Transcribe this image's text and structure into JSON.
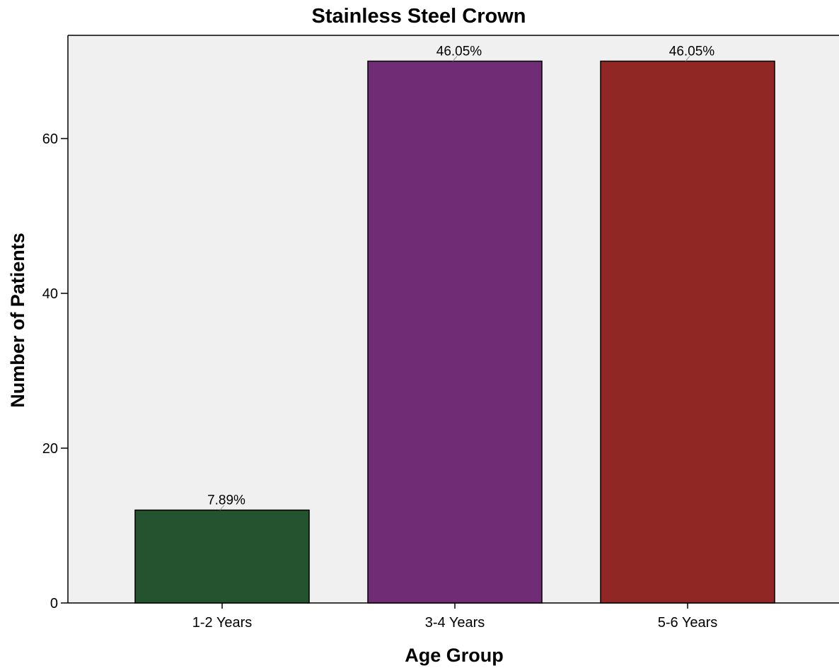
{
  "chart_data": {
    "type": "bar",
    "title": "Stainless Steel Crown",
    "xlabel": "Age Group",
    "ylabel": "Number of Patients",
    "categories": [
      "1-2 Years",
      "3-4 Years",
      "5-6 Years"
    ],
    "values": [
      12,
      70,
      70
    ],
    "data_labels": [
      "7.89%",
      "46.05%",
      "46.05%"
    ],
    "colors": [
      "#25532f",
      "#702d75",
      "#912724"
    ],
    "ylim": [
      0,
      70
    ],
    "yticks": [
      0,
      20,
      40,
      60
    ],
    "grid": false,
    "plot_background": "#f0f0f0"
  }
}
